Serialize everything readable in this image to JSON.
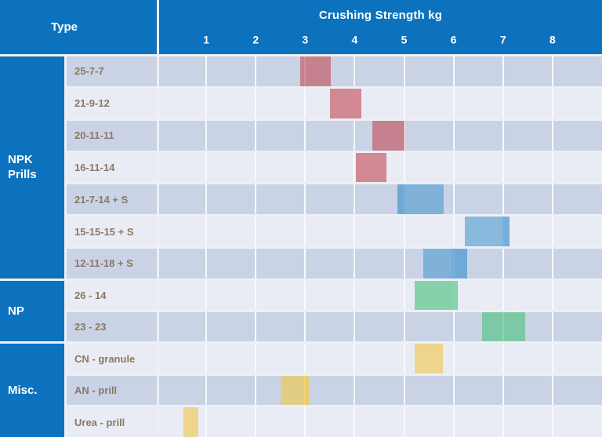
{
  "header": {
    "type_label": "Type",
    "axis_title": "Crushing Strength kg"
  },
  "axis": {
    "ticks": [
      "1",
      "2",
      "3",
      "4",
      "5",
      "6",
      "7",
      "8"
    ],
    "min": 0,
    "max": 9
  },
  "colors": {
    "header_blue": "#0C72BD",
    "row_dark": "#C9D3E5",
    "row_light": "#E9ECF4",
    "label_text": "#8A7963",
    "separator": "#EDF0F5",
    "gridline": "#F7FAFD",
    "bar_alpha_main": 0.65,
    "bar_alpha_overlay": 0.4
  },
  "chart_data": {
    "type": "bar",
    "subtype": "horizontal-range",
    "title": "Crushing Strength kg",
    "xlabel": "Crushing Strength kg",
    "ylabel": "Type",
    "xlim": [
      0,
      9
    ],
    "xticks": [
      1,
      2,
      3,
      4,
      5,
      6,
      7,
      8
    ],
    "grid": true,
    "palette": {
      "red": [
        196,
        84,
        96
      ],
      "blue": [
        88,
        158,
        211
      ],
      "green": [
        83,
        195,
        130
      ],
      "yellow": [
        240,
        202,
        83
      ]
    },
    "groups": [
      {
        "label": "NPK Prills",
        "rows": [
          {
            "label": "25-7-7",
            "color": "red",
            "start": 2.9,
            "end": 3.52,
            "overlay": null
          },
          {
            "label": "21-9-12",
            "color": "red",
            "start": 3.5,
            "end": 4.13,
            "overlay": null
          },
          {
            "label": "20-11-11",
            "color": "red",
            "start": 4.35,
            "end": 5.01,
            "overlay": null
          },
          {
            "label": "16-11-14",
            "color": "red",
            "start": 4.02,
            "end": 4.64,
            "overlay": null
          },
          {
            "label": "21-7-14 + S",
            "color": "blue",
            "start": 4.87,
            "end": 5.8,
            "overlay": {
              "start": 4.87,
              "end": 5.03
            }
          },
          {
            "label": "15-15-15 + S",
            "color": "blue",
            "start": 6.22,
            "end": 7.13,
            "overlay": {
              "start": 6.99,
              "end": 7.13
            }
          },
          {
            "label": "12-11-18 + S",
            "color": "blue",
            "start": 5.38,
            "end": 6.27,
            "overlay": {
              "start": 5.98,
              "end": 6.27
            }
          }
        ]
      },
      {
        "label": "NP",
        "rows": [
          {
            "label": "26 - 14",
            "color": "green",
            "start": 5.21,
            "end": 6.08,
            "overlay": null
          },
          {
            "label": "23 - 23",
            "color": "green",
            "start": 6.57,
            "end": 7.44,
            "overlay": null
          }
        ]
      },
      {
        "label": "Misc.",
        "rows": [
          {
            "label": "CN - granule",
            "color": "yellow",
            "start": 5.21,
            "end": 5.78,
            "overlay": null
          },
          {
            "label": "AN - prill",
            "color": "yellow",
            "start": 2.5,
            "end": 3.07,
            "overlay": {
              "start": 2.95,
              "end": 3.07
            }
          },
          {
            "label": "Urea - prill",
            "color": "yellow",
            "start": 0.54,
            "end": 0.84,
            "overlay": null
          }
        ]
      }
    ]
  }
}
